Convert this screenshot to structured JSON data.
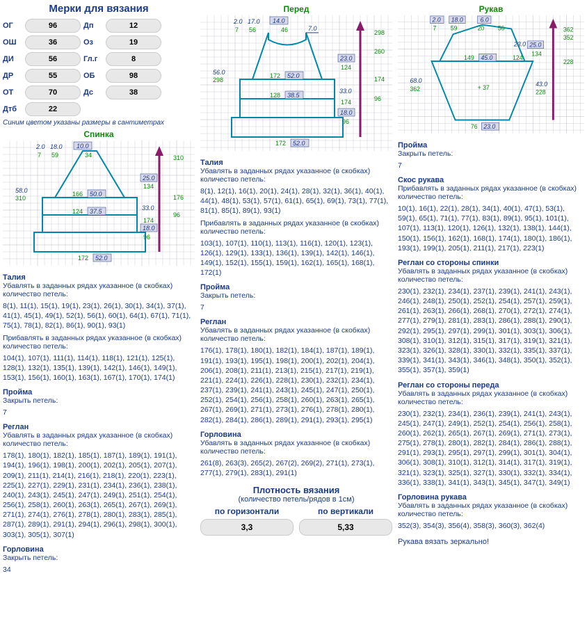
{
  "title": "Мерки для вязания",
  "measurements": [
    {
      "l1": "ОГ",
      "v1": "96",
      "l2": "Дп",
      "v2": "12"
    },
    {
      "l1": "ОШ",
      "v1": "36",
      "l2": "Оз",
      "v2": "19"
    },
    {
      "l1": "ДИ",
      "v1": "56",
      "l2": "Гл.г",
      "v2": "8"
    },
    {
      "l1": "ДР",
      "v1": "55",
      "l2": "ОБ",
      "v2": "98"
    },
    {
      "l1": "ОТ",
      "v1": "70",
      "l2": "Дс",
      "v2": "38"
    },
    {
      "l1": "Дтб",
      "v1": "22",
      "l2": "",
      "v2": ""
    }
  ],
  "cm_note": "Синим цветом указаны размеры в сантиметрах",
  "mirror": "Рукава вязать зеркально!",
  "density": {
    "title": "Плотность вязания",
    "sub": "(количество петель/рядов в 1см)",
    "h_label": "по горизонтали",
    "h_val": "3,3",
    "v_label": "по вертикали",
    "v_val": "5,33"
  },
  "patterns": {
    "back": {
      "title": "Спинка"
    },
    "front": {
      "title": "Перед"
    },
    "sleeve": {
      "title": "Рукав"
    }
  },
  "back_sections": [
    {
      "t": "Талия",
      "s": "Убавлять в заданных рядах указанное (в скобках) количество петель:",
      "d": "8(1), 11(1), 15(1), 19(1), 23(1), 26(1), 30(1), 34(1), 37(1), 41(1), 45(1), 49(1), 52(1), 56(1), 60(1), 64(1), 67(1), 71(1), 75(1), 78(1), 82(1), 86(1), 90(1), 93(1)"
    },
    {
      "t": "",
      "s": "Прибавлять в заданных рядах указанное (в скобках) количество петель:",
      "d": "104(1), 107(1), 111(1), 114(1), 118(1), 121(1), 125(1), 128(1), 132(1), 135(1), 139(1), 142(1), 146(1), 149(1), 153(1), 156(1), 160(1), 163(1), 167(1), 170(1), 174(1)"
    },
    {
      "t": "Пройма",
      "s": "Закрыть петель:",
      "d": "7"
    },
    {
      "t": "Реглан",
      "s": "Убавлять в заданных рядах указанное (в скобках) количество петель:",
      "d": "178(1), 180(1), 182(1), 185(1), 187(1), 189(1), 191(1), 194(1), 196(1), 198(1), 200(1), 202(1), 205(1), 207(1), 209(1), 211(1), 214(1), 216(1), 218(1), 220(1), 223(1), 225(1), 227(1), 229(1), 231(1), 234(1), 236(1), 238(1), 240(1), 243(1), 245(1), 247(1), 249(1), 251(1), 254(1), 256(1), 258(1), 260(1), 263(1), 265(1), 267(1), 269(1), 271(1), 274(1), 276(1), 278(1), 280(1), 283(1), 285(1), 287(1), 289(1), 291(1), 294(1), 296(1), 298(1), 300(1), 303(1), 305(1), 307(1)"
    },
    {
      "t": "Горловина",
      "s": "Закрыть петель:",
      "d": "34"
    }
  ],
  "front_sections": [
    {
      "t": "Талия",
      "s": "Убавлять в заданных рядах указанное (в скобках) количество петель:",
      "d": "8(1), 12(1), 16(1), 20(1), 24(1), 28(1), 32(1), 36(1), 40(1), 44(1), 48(1), 53(1), 57(1), 61(1), 65(1), 69(1), 73(1), 77(1), 81(1), 85(1), 89(1), 93(1)"
    },
    {
      "t": "",
      "s": "Прибавлять в заданных рядах указанное (в скобках) количество петель:",
      "d": "103(1), 107(1), 110(1), 113(1), 116(1), 120(1), 123(1), 126(1), 129(1), 133(1), 136(1), 139(1), 142(1), 146(1), 149(1), 152(1), 155(1), 159(1), 162(1), 165(1), 168(1), 172(1)"
    },
    {
      "t": "Пройма",
      "s": "Закрыть петель:",
      "d": "7"
    },
    {
      "t": "Реглан",
      "s": "Убавлять в заданных рядах указанное (в скобках) количество петель:",
      "d": "176(1), 178(1), 180(1), 182(1), 184(1), 187(1), 189(1), 191(1), 193(1), 195(1), 198(1), 200(1), 202(1), 204(1), 206(1), 208(1), 211(1), 213(1), 215(1), 217(1), 219(1), 221(1), 224(1), 226(1), 228(1), 230(1), 232(1), 234(1), 237(1), 239(1), 241(1), 243(1), 245(1), 247(1), 250(1), 252(1), 254(1), 256(1), 258(1), 260(1), 263(1), 265(1), 267(1), 269(1), 271(1), 273(1), 276(1), 278(1), 280(1), 282(1), 284(1), 286(1), 289(1), 291(1), 293(1), 295(1)"
    },
    {
      "t": "Горловина",
      "s": "Убавлять в заданных рядах указанное (в скобках) количество петель:",
      "d": " 261(8), 263(3), 265(2), 267(2), 269(2), 271(1), 273(1), 277(1), 279(1), 283(1), 291(1)"
    }
  ],
  "sleeve_sections": [
    {
      "t": "Пройма",
      "s": "Закрыть петель:",
      "d": "7"
    },
    {
      "t": "Скос рукава",
      "s": "Прибавлять в заданных рядах указанное (в скобках) количество петель:",
      "d": "10(1), 16(1), 22(1), 28(1), 34(1), 40(1), 47(1), 53(1), 59(1), 65(1), 71(1), 77(1), 83(1), 89(1), 95(1), 101(1), 107(1), 113(1), 120(1), 126(1), 132(1), 138(1), 144(1), 150(1), 156(1), 162(1), 168(1), 174(1), 180(1), 186(1), 193(1), 199(1), 205(1), 211(1), 217(1), 223(1)"
    },
    {
      "t": "Реглан со стороны спинки",
      "s": "Убавлять в заданных рядах указанное (в скобках) количество петель:",
      "d": "230(1), 232(1), 234(1), 237(1), 239(1), 241(1), 243(1), 246(1), 248(1), 250(1), 252(1), 254(1), 257(1), 259(1), 261(1), 263(1), 266(1), 268(1), 270(1), 272(1), 274(1), 277(1), 279(1), 281(1), 283(1), 286(1), 288(1), 290(1), 292(1), 295(1), 297(1), 299(1), 301(1), 303(1), 306(1), 308(1), 310(1), 312(1), 315(1), 317(1), 319(1), 321(1), 323(1), 326(1), 328(1), 330(1), 332(1), 335(1), 337(1), 339(1), 341(1), 343(1), 346(1), 348(1), 350(1), 352(1), 355(1), 357(1), 359(1)"
    },
    {
      "t": "Реглан со стороны переда",
      "s": "Убавлять в заданных рядах указанное (в скобках) количество петель:",
      "d": "230(1), 232(1), 234(1), 236(1), 239(1), 241(1), 243(1), 245(1), 247(1), 249(1), 252(1), 254(1), 256(1), 258(1), 260(1), 262(1), 265(1), 267(1), 269(1), 271(1), 273(1), 275(1), 278(1), 280(1), 282(1), 284(1), 286(1), 288(1), 291(1), 293(1), 295(1), 297(1), 299(1), 301(1), 304(1), 306(1), 308(1), 310(1), 312(1), 314(1), 317(1), 319(1), 321(1), 323(1), 325(1), 327(1), 330(1), 332(1), 334(1), 336(1), 338(1), 341(1), 343(1), 345(1), 347(1), 349(1)"
    },
    {
      "t": "Горловина рукава",
      "s": "Убавлять в заданных рядах указанное (в скобках) количество петель:",
      "d": "352(3), 354(3), 356(4), 358(3), 360(3), 362(4)"
    }
  ]
}
